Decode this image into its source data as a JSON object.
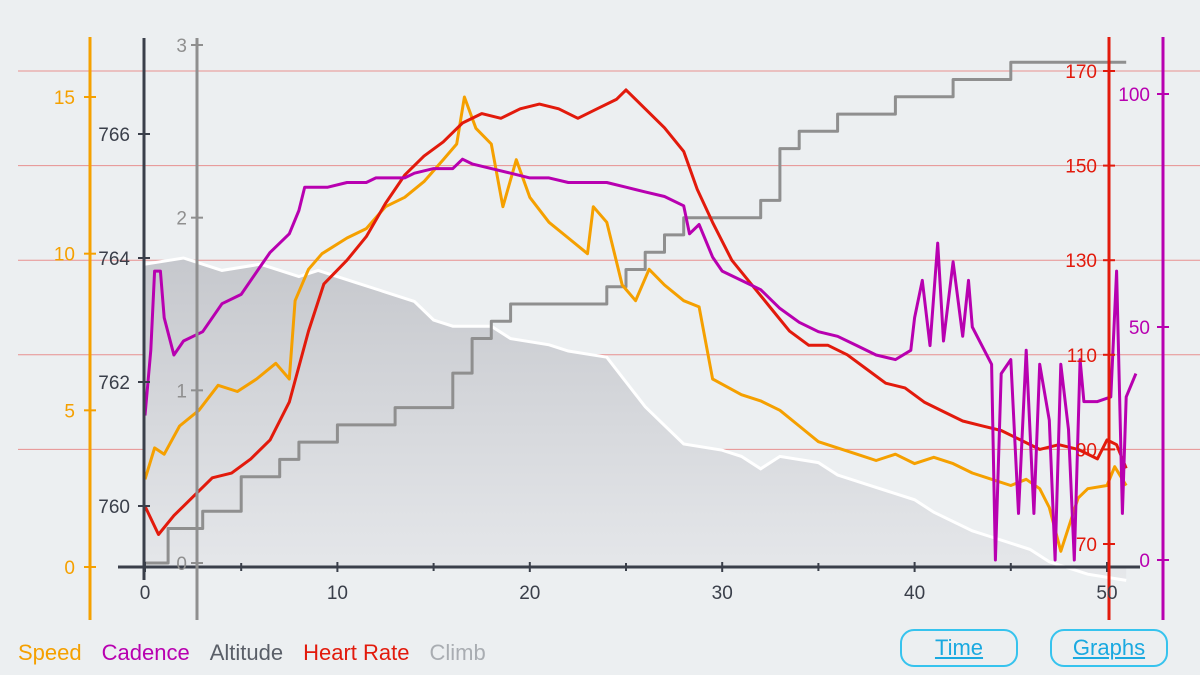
{
  "legend": {
    "speed": "Speed",
    "cadence": "Cadence",
    "altitude": "Altitude",
    "heart_rate": "Heart Rate",
    "climb": "Climb"
  },
  "buttons": {
    "time": "Time",
    "graphs": "Graphs"
  },
  "colors": {
    "speed": "#f5a000",
    "cadence": "#b800b0",
    "altitude": "#8f8f8f",
    "heart_rate": "#e21a0c",
    "climb": "#b5b8bd",
    "axis_dark": "#3a3f4a",
    "grid": "#e89090"
  },
  "chart_data": {
    "type": "line",
    "x": {
      "label": "",
      "range": [
        0,
        51
      ],
      "ticks": [
        "0",
        "10",
        "20",
        "30",
        "40",
        "50"
      ]
    },
    "axes": {
      "speed": {
        "range": [
          0,
          15.5
        ],
        "ticks": [
          "0",
          "5",
          "10",
          "15"
        ]
      },
      "altitude": {
        "range": [
          759.6,
          767.2
        ],
        "ticks": [
          "760",
          "762",
          "764",
          "766"
        ]
      },
      "climb": {
        "range": [
          0,
          3
        ],
        "ticks": [
          "0",
          "1",
          "2",
          "3"
        ]
      },
      "heart_rate": {
        "range": [
          68,
          173
        ],
        "ticks": [
          "70",
          "90",
          "110",
          "130",
          "150",
          "170"
        ]
      },
      "cadence": {
        "range": [
          0,
          100
        ],
        "ticks": [
          "0",
          "50",
          "100"
        ]
      }
    },
    "series": [
      {
        "name": "Altitude",
        "axis": "altitude",
        "style": "area",
        "points": [
          [
            0,
            763.9
          ],
          [
            2,
            764.0
          ],
          [
            4,
            763.8
          ],
          [
            6,
            763.9
          ],
          [
            8,
            763.7
          ],
          [
            9,
            763.8
          ],
          [
            11,
            763.6
          ],
          [
            12,
            763.5
          ],
          [
            14,
            763.3
          ],
          [
            15,
            763.0
          ],
          [
            16,
            762.9
          ],
          [
            18,
            762.9
          ],
          [
            19,
            762.7
          ],
          [
            21,
            762.6
          ],
          [
            22,
            762.5
          ],
          [
            24,
            762.4
          ],
          [
            25,
            762.0
          ],
          [
            26,
            761.6
          ],
          [
            27,
            761.3
          ],
          [
            28,
            761.0
          ],
          [
            30,
            760.9
          ],
          [
            31,
            760.8
          ],
          [
            32,
            760.6
          ],
          [
            33,
            760.8
          ],
          [
            35,
            760.7
          ],
          [
            36,
            760.5
          ],
          [
            38,
            760.3
          ],
          [
            40,
            760.1
          ],
          [
            41,
            759.9
          ],
          [
            43,
            759.6
          ],
          [
            44,
            759.5
          ],
          [
            46,
            759.3
          ],
          [
            47,
            759.1
          ],
          [
            48,
            759.0
          ],
          [
            49,
            758.9
          ],
          [
            51,
            758.8
          ]
        ]
      },
      {
        "name": "Climb",
        "axis": "climb",
        "style": "step",
        "points": [
          [
            0,
            0
          ],
          [
            1.2,
            0.2
          ],
          [
            3,
            0.3
          ],
          [
            5,
            0.5
          ],
          [
            7,
            0.6
          ],
          [
            8,
            0.7
          ],
          [
            10,
            0.8
          ],
          [
            13,
            0.9
          ],
          [
            16,
            1.1
          ],
          [
            17,
            1.3
          ],
          [
            18,
            1.4
          ],
          [
            19,
            1.5
          ],
          [
            24,
            1.6
          ],
          [
            25,
            1.7
          ],
          [
            26,
            1.8
          ],
          [
            27,
            1.9
          ],
          [
            28,
            2.0
          ],
          [
            32,
            2.1
          ],
          [
            33,
            2.4
          ],
          [
            34,
            2.5
          ],
          [
            36,
            2.6
          ],
          [
            39,
            2.7
          ],
          [
            42,
            2.8
          ],
          [
            45,
            2.9
          ],
          [
            51,
            2.9
          ]
        ]
      },
      {
        "name": "Speed",
        "axis": "speed",
        "points": [
          [
            0,
            2.8
          ],
          [
            0.5,
            3.8
          ],
          [
            1,
            3.6
          ],
          [
            1.8,
            4.5
          ],
          [
            2.8,
            5.0
          ],
          [
            3.8,
            5.8
          ],
          [
            4.8,
            5.6
          ],
          [
            5.8,
            6.0
          ],
          [
            6.8,
            6.5
          ],
          [
            7.5,
            6.0
          ],
          [
            7.8,
            8.5
          ],
          [
            8.5,
            9.5
          ],
          [
            9.2,
            10.0
          ],
          [
            10.5,
            10.5
          ],
          [
            11.5,
            10.8
          ],
          [
            12.5,
            11.5
          ],
          [
            13.5,
            11.8
          ],
          [
            14.5,
            12.3
          ],
          [
            15.5,
            13.0
          ],
          [
            16.2,
            13.5
          ],
          [
            16.6,
            15.0
          ],
          [
            17.2,
            14.0
          ],
          [
            18,
            13.5
          ],
          [
            18.6,
            11.5
          ],
          [
            19.3,
            13.0
          ],
          [
            20,
            11.8
          ],
          [
            21,
            11.0
          ],
          [
            22,
            10.5
          ],
          [
            23,
            10.0
          ],
          [
            23.3,
            11.5
          ],
          [
            24,
            11.0
          ],
          [
            24.8,
            9.0
          ],
          [
            25.5,
            8.5
          ],
          [
            26.2,
            9.5
          ],
          [
            27,
            9.0
          ],
          [
            28,
            8.5
          ],
          [
            28.8,
            8.3
          ],
          [
            29.5,
            6.0
          ],
          [
            31,
            5.5
          ],
          [
            32,
            5.3
          ],
          [
            33,
            5.0
          ],
          [
            34,
            4.5
          ],
          [
            35,
            4.0
          ],
          [
            36,
            3.8
          ],
          [
            37,
            3.6
          ],
          [
            38,
            3.4
          ],
          [
            39,
            3.6
          ],
          [
            40,
            3.3
          ],
          [
            41,
            3.5
          ],
          [
            42,
            3.3
          ],
          [
            43,
            3.0
          ],
          [
            44,
            2.8
          ],
          [
            45,
            2.6
          ],
          [
            45.8,
            2.8
          ],
          [
            46.5,
            2.5
          ],
          [
            47,
            1.9
          ],
          [
            47.6,
            0.5
          ],
          [
            48.5,
            2.2
          ],
          [
            49,
            2.5
          ],
          [
            50,
            2.6
          ],
          [
            50.4,
            3.2
          ],
          [
            51,
            2.6
          ]
        ]
      },
      {
        "name": "Heart Rate",
        "axis": "heart_rate",
        "points": [
          [
            0,
            78
          ],
          [
            0.7,
            72
          ],
          [
            1.5,
            76
          ],
          [
            2.5,
            80
          ],
          [
            3.5,
            84
          ],
          [
            4.5,
            85
          ],
          [
            5.5,
            88
          ],
          [
            6.5,
            92
          ],
          [
            7.5,
            100
          ],
          [
            8.5,
            115
          ],
          [
            9.3,
            125
          ],
          [
            10.5,
            130
          ],
          [
            11.5,
            135
          ],
          [
            12.5,
            142
          ],
          [
            13.5,
            148
          ],
          [
            14.5,
            152
          ],
          [
            15.5,
            155
          ],
          [
            16.5,
            159
          ],
          [
            17.5,
            161
          ],
          [
            18.5,
            160
          ],
          [
            19.5,
            162
          ],
          [
            20.5,
            163
          ],
          [
            21.5,
            162
          ],
          [
            22.5,
            160
          ],
          [
            23.5,
            162
          ],
          [
            24.5,
            164
          ],
          [
            25,
            166
          ],
          [
            26,
            162
          ],
          [
            27,
            158
          ],
          [
            28,
            153
          ],
          [
            28.7,
            145
          ],
          [
            29.5,
            138
          ],
          [
            30.5,
            130
          ],
          [
            31.5,
            125
          ],
          [
            32.5,
            120
          ],
          [
            33.5,
            115
          ],
          [
            34.5,
            112
          ],
          [
            35.5,
            112
          ],
          [
            36.5,
            110
          ],
          [
            37.5,
            107
          ],
          [
            38.5,
            104
          ],
          [
            39.5,
            103
          ],
          [
            40.5,
            100
          ],
          [
            41.5,
            98
          ],
          [
            42.5,
            96
          ],
          [
            43.5,
            95
          ],
          [
            44.5,
            94
          ],
          [
            45.5,
            92
          ],
          [
            46.5,
            90
          ],
          [
            47.5,
            91
          ],
          [
            48.5,
            90
          ],
          [
            49.5,
            88
          ],
          [
            50,
            92
          ],
          [
            50.5,
            91
          ],
          [
            51,
            86
          ]
        ]
      },
      {
        "name": "Cadence",
        "axis": "cadence",
        "points": [
          [
            0,
            31
          ],
          [
            0.3,
            45
          ],
          [
            0.5,
            62
          ],
          [
            0.8,
            62
          ],
          [
            1,
            52
          ],
          [
            1.5,
            44
          ],
          [
            2,
            47
          ],
          [
            3,
            49
          ],
          [
            4,
            55
          ],
          [
            5,
            57
          ],
          [
            6,
            63
          ],
          [
            6.5,
            66
          ],
          [
            7.5,
            70
          ],
          [
            8,
            75
          ],
          [
            8.3,
            80
          ],
          [
            9.5,
            80
          ],
          [
            10.5,
            81
          ],
          [
            11.5,
            81
          ],
          [
            12,
            82
          ],
          [
            13.5,
            82
          ],
          [
            14,
            83
          ],
          [
            15,
            84
          ],
          [
            16,
            84
          ],
          [
            16.5,
            86
          ],
          [
            17,
            85
          ],
          [
            18,
            84
          ],
          [
            19,
            83
          ],
          [
            20,
            82
          ],
          [
            21,
            82
          ],
          [
            22,
            81
          ],
          [
            23,
            81
          ],
          [
            24,
            81
          ],
          [
            25,
            80
          ],
          [
            26,
            79
          ],
          [
            27,
            78
          ],
          [
            28,
            76
          ],
          [
            28.3,
            70
          ],
          [
            28.8,
            72
          ],
          [
            29.5,
            65
          ],
          [
            30,
            62
          ],
          [
            31,
            60
          ],
          [
            32,
            58
          ],
          [
            33,
            54
          ],
          [
            34,
            51
          ],
          [
            35,
            49
          ],
          [
            36,
            48
          ],
          [
            37,
            46
          ],
          [
            38,
            44
          ],
          [
            39,
            43
          ],
          [
            39.8,
            45
          ],
          [
            40,
            52
          ],
          [
            40.4,
            60
          ],
          [
            40.8,
            46
          ],
          [
            41.2,
            68
          ],
          [
            41.5,
            47
          ],
          [
            42,
            64
          ],
          [
            42.5,
            48
          ],
          [
            42.8,
            60
          ],
          [
            43,
            50
          ],
          [
            43.5,
            46
          ],
          [
            44,
            42
          ],
          [
            44.2,
            0
          ],
          [
            44.5,
            40
          ],
          [
            45,
            43
          ],
          [
            45.4,
            10
          ],
          [
            45.8,
            45
          ],
          [
            46.2,
            10
          ],
          [
            46.5,
            42
          ],
          [
            47,
            30
          ],
          [
            47.3,
            0
          ],
          [
            47.6,
            42
          ],
          [
            48,
            28
          ],
          [
            48.3,
            0
          ],
          [
            48.6,
            43
          ],
          [
            48.8,
            34
          ],
          [
            49.5,
            34
          ],
          [
            50.2,
            35
          ],
          [
            50.5,
            62
          ],
          [
            50.8,
            10
          ],
          [
            51,
            35
          ],
          [
            51.5,
            40
          ]
        ]
      }
    ]
  }
}
